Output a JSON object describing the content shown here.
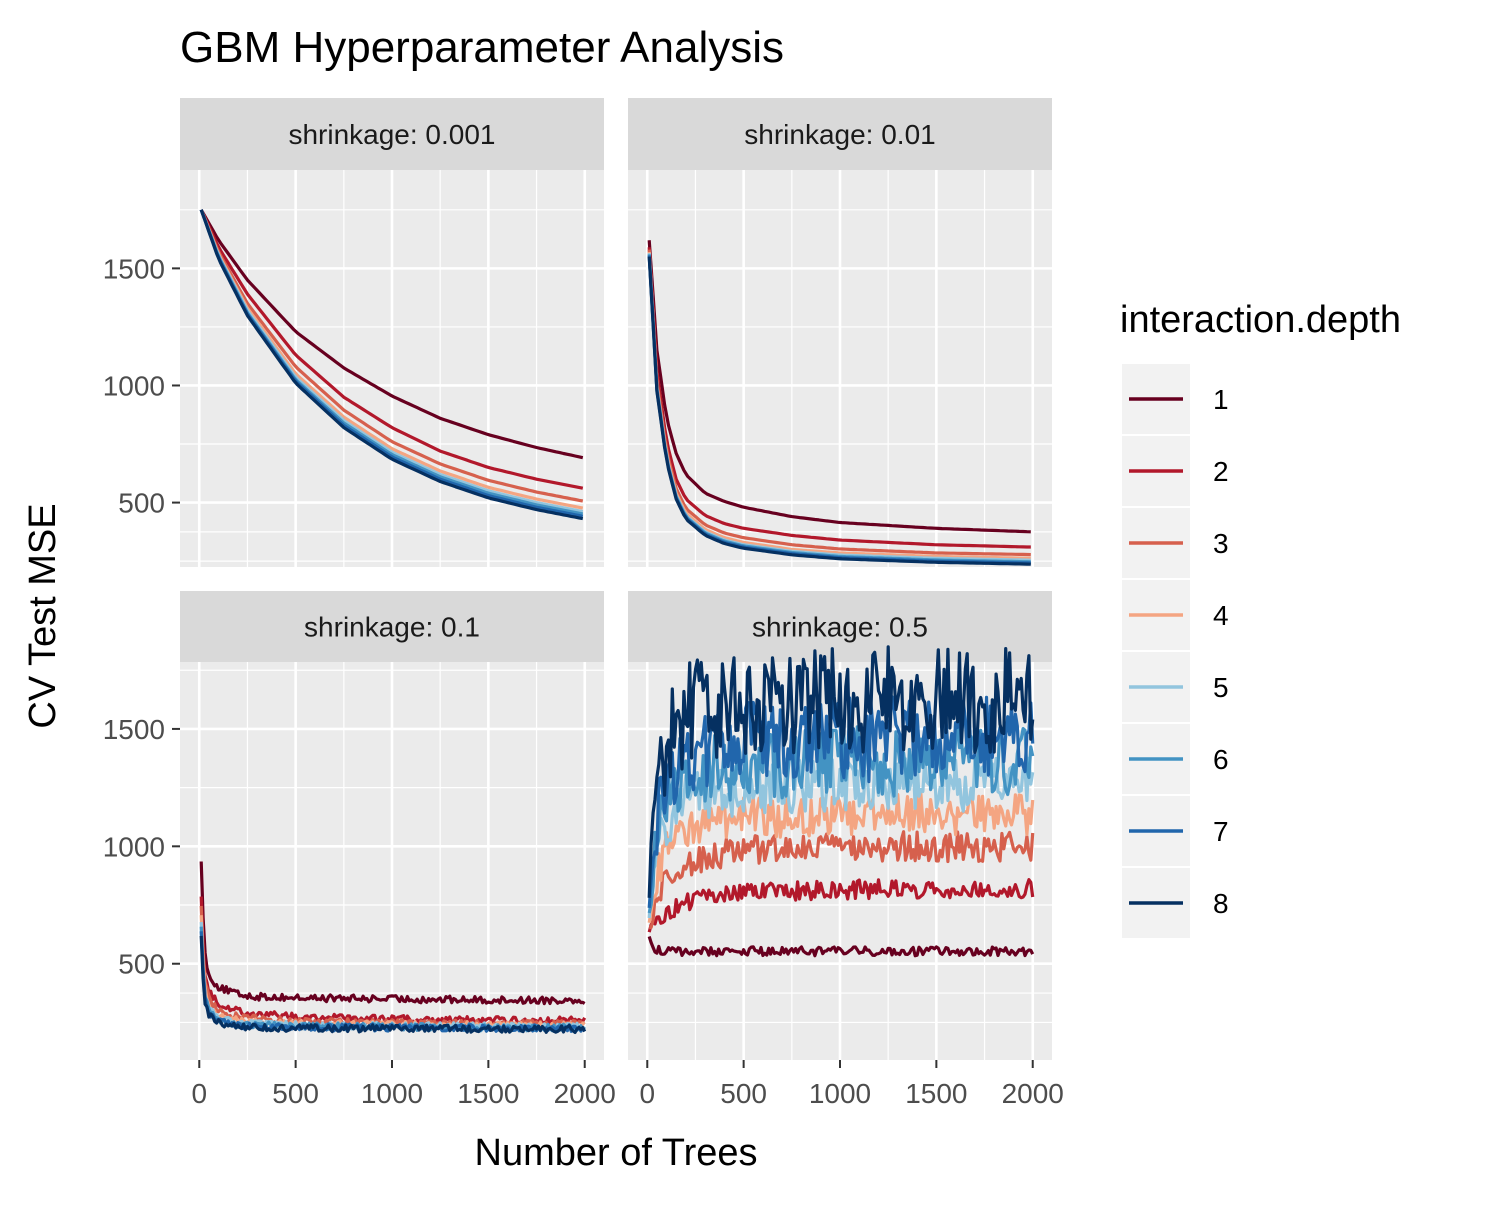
{
  "chart_data": {
    "type": "line",
    "title": "GBM Hyperparameter Analysis",
    "xlabel": "Number of Trees",
    "ylabel": "CV Test MSE",
    "x_ticks": [
      0,
      500,
      1000,
      1500,
      2000
    ],
    "y_ticks": [
      500,
      1000,
      1500
    ],
    "xlim": [
      -100,
      2100
    ],
    "ylim": [
      60,
      2200
    ],
    "grid": true,
    "legend": {
      "title": "interaction.depth",
      "placement": "right",
      "entries": [
        "1",
        "2",
        "3",
        "4",
        "5",
        "6",
        "7",
        "8"
      ]
    },
    "series_colors": [
      "#67001f",
      "#b2182b",
      "#d6604d",
      "#f4a582",
      "#92c5de",
      "#4393c3",
      "#2166ac",
      "#053061"
    ],
    "facets": [
      {
        "label": "shrinkage: 0.001",
        "panel_ylim": [
          225,
          1920
        ],
        "noise": 0,
        "series": [
          {
            "name": "1",
            "x": [
              10,
              100,
              250,
              500,
              750,
              1000,
              1250,
              1500,
              1750,
              2000
            ],
            "values": [
              1750,
              1620,
              1450,
              1230,
              1075,
              955,
              860,
              790,
              735,
              690
            ]
          },
          {
            "name": "2",
            "x": [
              10,
              100,
              250,
              500,
              750,
              1000,
              1250,
              1500,
              1750,
              2000
            ],
            "values": [
              1750,
              1590,
              1390,
              1130,
              950,
              820,
              720,
              650,
              600,
              560
            ]
          },
          {
            "name": "3",
            "x": [
              10,
              100,
              250,
              500,
              750,
              1000,
              1250,
              1500,
              1750,
              2000
            ],
            "values": [
              1750,
              1570,
              1350,
              1080,
              895,
              760,
              665,
              595,
              545,
              505
            ]
          },
          {
            "name": "4",
            "x": [
              10,
              100,
              250,
              500,
              750,
              1000,
              1250,
              1500,
              1750,
              2000
            ],
            "values": [
              1750,
              1560,
              1330,
              1050,
              865,
              730,
              635,
              565,
              515,
              475
            ]
          },
          {
            "name": "5",
            "x": [
              10,
              100,
              250,
              500,
              750,
              1000,
              1250,
              1500,
              1750,
              2000
            ],
            "values": [
              1750,
              1555,
              1320,
              1035,
              850,
              715,
              620,
              550,
              500,
              460
            ]
          },
          {
            "name": "6",
            "x": [
              10,
              100,
              250,
              500,
              750,
              1000,
              1250,
              1500,
              1750,
              2000
            ],
            "values": [
              1750,
              1550,
              1310,
              1025,
              840,
              705,
              610,
              540,
              490,
              450
            ]
          },
          {
            "name": "7",
            "x": [
              10,
              100,
              250,
              500,
              750,
              1000,
              1250,
              1500,
              1750,
              2000
            ],
            "values": [
              1750,
              1545,
              1305,
              1018,
              830,
              695,
              600,
              530,
              480,
              440
            ]
          },
          {
            "name": "8",
            "x": [
              10,
              100,
              250,
              500,
              750,
              1000,
              1250,
              1500,
              1750,
              2000
            ],
            "values": [
              1750,
              1540,
              1298,
              1010,
              820,
              685,
              590,
              520,
              470,
              430
            ]
          }
        ]
      },
      {
        "label": "shrinkage: 0.01",
        "panel_ylim": [
          225,
          1920
        ],
        "noise": 0,
        "series": [
          {
            "name": "1",
            "x": [
              10,
              50,
              100,
              150,
              200,
              300,
              400,
              500,
              750,
              1000,
              1500,
              2000
            ],
            "values": [
              1620,
              1150,
              860,
              710,
              620,
              540,
              505,
              480,
              440,
              415,
              390,
              375
            ]
          },
          {
            "name": "2",
            "x": [
              10,
              50,
              100,
              150,
              200,
              300,
              400,
              500,
              750,
              1000,
              1500,
              2000
            ],
            "values": [
              1590,
              1060,
              760,
              600,
              515,
              445,
              410,
              390,
              360,
              340,
              320,
              310
            ]
          },
          {
            "name": "3",
            "x": [
              10,
              50,
              100,
              150,
              200,
              300,
              400,
              500,
              750,
              1000,
              1500,
              2000
            ],
            "values": [
              1580,
              1020,
              720,
              560,
              475,
              405,
              370,
              350,
              320,
              302,
              285,
              278
            ]
          },
          {
            "name": "4",
            "x": [
              10,
              50,
              100,
              150,
              200,
              300,
              400,
              500,
              750,
              1000,
              1500,
              2000
            ],
            "values": [
              1570,
              1000,
              700,
              540,
              455,
              385,
              350,
              330,
              300,
              285,
              270,
              262
            ]
          },
          {
            "name": "5",
            "x": [
              10,
              50,
              100,
              150,
              200,
              300,
              400,
              500,
              750,
              1000,
              1500,
              2000
            ],
            "values": [
              1565,
              990,
              690,
              530,
              445,
              375,
              340,
              320,
              292,
              276,
              262,
              254
            ]
          },
          {
            "name": "6",
            "x": [
              10,
              50,
              100,
              150,
              200,
              300,
              400,
              500,
              750,
              1000,
              1500,
              2000
            ],
            "values": [
              1560,
              985,
              685,
              525,
              440,
              370,
              335,
              315,
              287,
              270,
              255,
              247
            ]
          },
          {
            "name": "7",
            "x": [
              10,
              50,
              100,
              150,
              200,
              300,
              400,
              500,
              750,
              1000,
              1500,
              2000
            ],
            "values": [
              1555,
              980,
              680,
              520,
              435,
              365,
              330,
              310,
              282,
              265,
              250,
              242
            ]
          },
          {
            "name": "8",
            "x": [
              10,
              50,
              100,
              150,
              200,
              300,
              400,
              500,
              750,
              1000,
              1500,
              2000
            ],
            "values": [
              1550,
              975,
              675,
              515,
              430,
              360,
              325,
              305,
              277,
              260,
              245,
              237
            ]
          }
        ]
      },
      {
        "label": "shrinkage: 0.1",
        "panel_ylim": [
          90,
          1785
        ],
        "noise": 3,
        "series": [
          {
            "name": "1",
            "x": [
              10,
              25,
              50,
              100,
              200,
              300,
              500,
              1000,
              1500,
              2000
            ],
            "values": [
              950,
              560,
              450,
              400,
              370,
              360,
              355,
              350,
              345,
              345
            ]
          },
          {
            "name": "2",
            "x": [
              10,
              25,
              50,
              100,
              200,
              300,
              500,
              1000,
              1500,
              2000
            ],
            "values": [
              800,
              480,
              380,
              330,
              300,
              285,
              275,
              265,
              260,
              258
            ]
          },
          {
            "name": "3",
            "x": [
              10,
              25,
              50,
              100,
              200,
              300,
              500,
              1000,
              1500,
              2000
            ],
            "values": [
              760,
              440,
              350,
              300,
              275,
              265,
              255,
              248,
              245,
              243
            ]
          },
          {
            "name": "4",
            "x": [
              10,
              25,
              50,
              100,
              200,
              300,
              500,
              1000,
              1500,
              2000
            ],
            "values": [
              720,
              410,
              320,
              275,
              258,
              250,
              245,
              240,
              238,
              237
            ]
          },
          {
            "name": "5",
            "x": [
              10,
              25,
              50,
              100,
              200,
              300,
              500,
              1000,
              1500,
              2000
            ],
            "values": [
              690,
              390,
              305,
              265,
              250,
              243,
              238,
              235,
              233,
              232
            ]
          },
          {
            "name": "6",
            "x": [
              10,
              25,
              50,
              100,
              200,
              300,
              500,
              1000,
              1500,
              2000
            ],
            "values": [
              670,
              375,
              295,
              258,
              244,
              238,
              234,
              231,
              229,
              228
            ]
          },
          {
            "name": "7",
            "x": [
              10,
              25,
              50,
              100,
              200,
              300,
              500,
              1000,
              1500,
              2000
            ],
            "values": [
              650,
              365,
              287,
              252,
              239,
              234,
              230,
              227,
              226,
              225
            ]
          },
          {
            "name": "8",
            "x": [
              10,
              25,
              50,
              100,
              200,
              300,
              500,
              1000,
              1500,
              2000
            ],
            "values": [
              630,
              355,
              280,
              247,
              235,
              230,
              226,
              224,
              223,
              222
            ]
          }
        ]
      },
      {
        "label": "shrinkage: 0.5",
        "panel_ylim": [
          90,
          1785
        ],
        "noise": 1,
        "series": [
          {
            "name": "1",
            "x": [
              10,
              30,
              60,
              100,
              200,
              500,
              1000,
              1500,
              2000
            ],
            "values": [
              620,
              570,
              555,
              550,
              552,
              553,
              553,
              553,
              553
            ]
          },
          {
            "name": "2",
            "x": [
              10,
              30,
              60,
              100,
              200,
              300,
              500,
              1000,
              1500,
              2000
            ],
            "values": [
              640,
              660,
              690,
              720,
              760,
              785,
              805,
              815,
              820,
              820
            ]
          },
          {
            "name": "3",
            "x": [
              10,
              30,
              60,
              100,
              200,
              300,
              500,
              1000,
              1500,
              2000
            ],
            "values": [
              660,
              720,
              800,
              860,
              920,
              955,
              980,
              995,
              1000,
              1000
            ]
          },
          {
            "name": "4",
            "x": [
              10,
              30,
              60,
              100,
              200,
              300,
              500,
              1000,
              1500,
              2000
            ],
            "values": [
              680,
              780,
              900,
              990,
              1070,
              1100,
              1120,
              1135,
              1140,
              1140
            ]
          },
          {
            "name": "5",
            "x": [
              10,
              30,
              60,
              100,
              200,
              300,
              500,
              1000,
              1500,
              2000
            ],
            "values": [
              700,
              850,
              1000,
              1100,
              1190,
              1225,
              1250,
              1265,
              1270,
              1270
            ]
          },
          {
            "name": "6",
            "x": [
              10,
              30,
              60,
              100,
              200,
              300,
              500,
              1000,
              1500,
              2000
            ],
            "values": [
              720,
              900,
              1080,
              1190,
              1280,
              1320,
              1345,
              1360,
              1365,
              1365
            ]
          },
          {
            "name": "7",
            "x": [
              10,
              30,
              60,
              100,
              200,
              300,
              500,
              1000,
              1500,
              2000
            ],
            "values": [
              740,
              950,
              1150,
              1270,
              1370,
              1410,
              1440,
              1455,
              1460,
              1460
            ]
          },
          {
            "name": "8",
            "x": [
              10,
              30,
              60,
              100,
              200,
              300,
              500,
              1000,
              1500,
              2000
            ],
            "values": [
              780,
              1050,
              1300,
              1450,
              1560,
              1590,
              1610,
              1620,
              1625,
              1625
            ]
          }
        ]
      }
    ]
  }
}
